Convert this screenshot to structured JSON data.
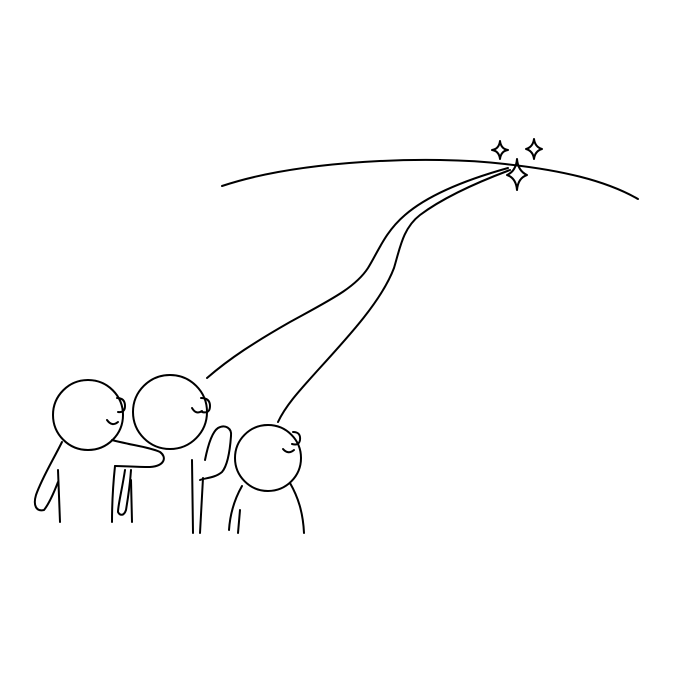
{
  "illustration": {
    "ink_color": "#000000",
    "background_color": "#ffffff",
    "stroke_width": 2,
    "people_count": 3,
    "sparkle_count": 3,
    "icons": [
      "horizon-arc",
      "shooting-star-trail",
      "sparkle-icon",
      "person-figure"
    ]
  }
}
